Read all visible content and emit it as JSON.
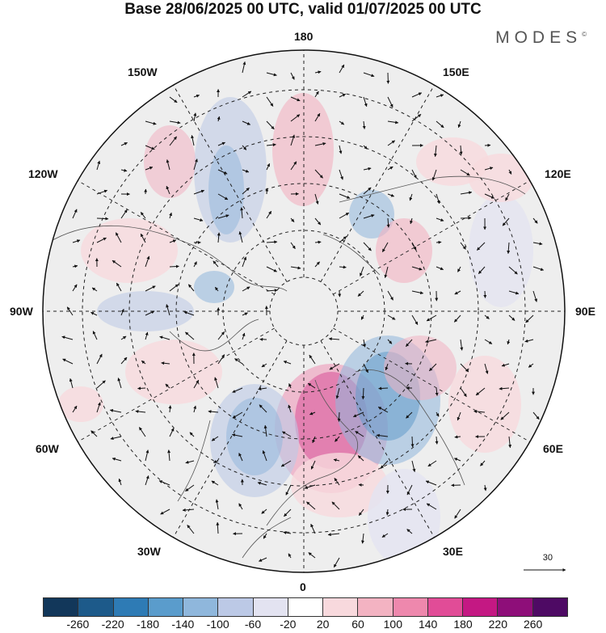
{
  "title": "Base 28/06/2025 00 UTC, valid 01/07/2025 00 UTC",
  "logo": "MODES",
  "logo_mark": "©",
  "lon_labels": {
    "top": "180",
    "bottom": "0",
    "left": "90W",
    "right": "90E",
    "upper_left_1": "150W",
    "upper_left_2": "120W",
    "upper_right_1": "150E",
    "upper_right_2": "120E",
    "lower_left_1": "60W",
    "lower_left_2": "30W",
    "lower_right_1": "60E",
    "lower_right_2": "30E"
  },
  "vector_scale": {
    "label": "30"
  },
  "colorbar": {
    "colors": [
      "#12375a",
      "#1d5a8a",
      "#2e7bb5",
      "#5a9ccc",
      "#8fb7dc",
      "#bcc9e6",
      "#e3e3f1",
      "#ffffff",
      "#f8d9dd",
      "#f3b3c2",
      "#ee88ad",
      "#e14c97",
      "#c41883",
      "#8e0e79",
      "#4e0a64"
    ],
    "ticks": [
      "-260",
      "-220",
      "-180",
      "-140",
      "-100",
      "-60",
      "-20",
      "20",
      "60",
      "100",
      "140",
      "180",
      "220",
      "260"
    ]
  }
}
